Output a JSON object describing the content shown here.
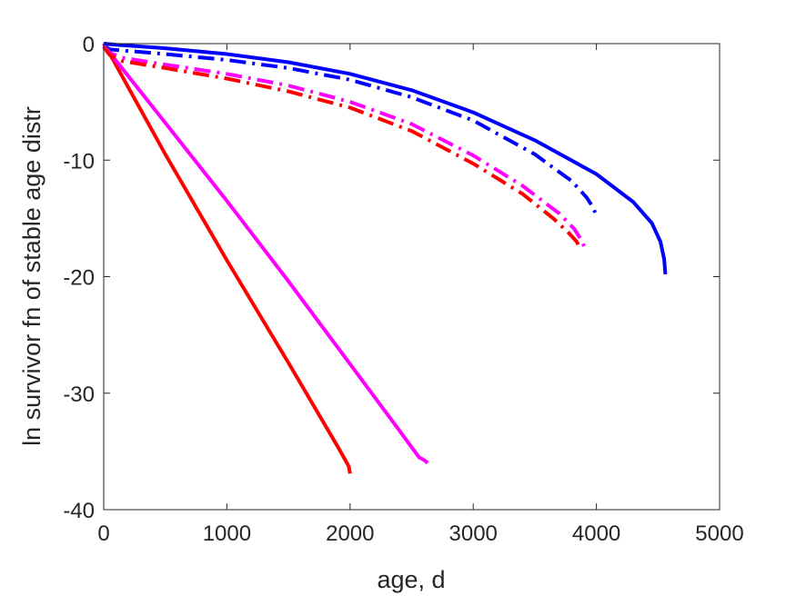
{
  "chart_data": {
    "type": "line",
    "title": "",
    "xlabel": "age, d",
    "ylabel": "ln survivor fn of stable age distr",
    "xlim": [
      0,
      5000
    ],
    "ylim": [
      -40,
      0
    ],
    "xticks": [
      0,
      1000,
      2000,
      3000,
      4000,
      5000
    ],
    "yticks": [
      0,
      -10,
      -20,
      -30,
      -40
    ],
    "xtick_labels": [
      "0",
      "1000",
      "2000",
      "3000",
      "4000",
      "5000"
    ],
    "ytick_labels": [
      "0",
      "-10",
      "-20",
      "-30",
      "-40"
    ],
    "grid": false,
    "legend": null,
    "series": [
      {
        "color": "#ff0000",
        "style": "solid",
        "x": [
          0,
          50,
          500,
          1000,
          1500,
          1900,
          1970,
          1990,
          2000
        ],
        "y": [
          0,
          -0.9,
          -9.5,
          -18.6,
          -27.4,
          -34.6,
          -35.9,
          -36.3,
          -36.9
        ]
      },
      {
        "color": "#ff00ff",
        "style": "solid",
        "x": [
          0,
          50,
          500,
          1000,
          1500,
          2000,
          2400,
          2560,
          2610,
          2630
        ],
        "y": [
          0,
          -0.8,
          -6.8,
          -13.5,
          -20.4,
          -27.5,
          -33.2,
          -35.5,
          -35.8,
          -36.0
        ]
      },
      {
        "color": "#0000ff",
        "style": "solid",
        "x": [
          0,
          100,
          500,
          1000,
          1500,
          2000,
          2500,
          3000,
          3500,
          4000,
          4300,
          4450,
          4520,
          4550,
          4560
        ],
        "y": [
          0,
          -0.1,
          -0.4,
          -0.9,
          -1.6,
          -2.6,
          -4.0,
          -5.9,
          -8.3,
          -11.2,
          -13.6,
          -15.4,
          -17.0,
          -18.5,
          -19.8
        ]
      },
      {
        "color": "#0000ff",
        "style": "dashdot",
        "x": [
          0,
          50,
          500,
          1000,
          1500,
          2000,
          2500,
          3000,
          3500,
          3800,
          3920,
          3970,
          3990
        ],
        "y": [
          -0.2,
          -0.5,
          -0.9,
          -1.4,
          -2.1,
          -3.1,
          -4.6,
          -6.6,
          -9.5,
          -11.8,
          -13.2,
          -14.0,
          -14.5
        ]
      },
      {
        "color": "#ff00ff",
        "style": "dashdot",
        "x": [
          0,
          50,
          150,
          500,
          1000,
          1500,
          2000,
          2500,
          3000,
          3400,
          3700,
          3820,
          3880,
          3900
        ],
        "y": [
          -0.2,
          -0.8,
          -1.2,
          -1.8,
          -2.6,
          -3.6,
          -5.0,
          -6.9,
          -9.6,
          -12.2,
          -14.6,
          -15.9,
          -16.9,
          -17.4
        ]
      },
      {
        "color": "#ff0000",
        "style": "dashdot",
        "x": [
          0,
          50,
          150,
          500,
          1000,
          1500,
          2000,
          2500,
          3000,
          3400,
          3650,
          3780,
          3840,
          3860
        ],
        "y": [
          -0.3,
          -1.0,
          -1.5,
          -2.1,
          -3.0,
          -4.1,
          -5.5,
          -7.5,
          -10.3,
          -12.9,
          -15.0,
          -16.3,
          -17.0,
          -17.4
        ]
      }
    ]
  }
}
